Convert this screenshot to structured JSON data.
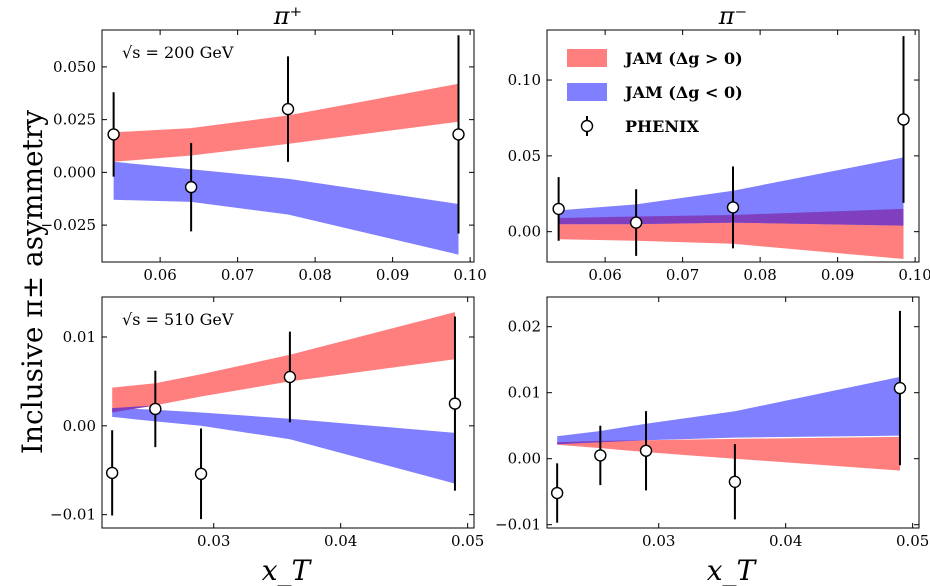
{
  "colors": {
    "positive_band": "#ff7f7f",
    "negative_band": "#7f7fff",
    "overlap_band": "#7f3fbf",
    "data_marker": "#000000"
  },
  "ylabel": "Inclusive π± asymmetry",
  "xlabel": "x_T",
  "chart_data": [
    {
      "type": "line",
      "panel": "top-left",
      "title": "π⁺",
      "annotation": "√s = 200 GeV",
      "xlim": [
        0.0525,
        0.1005
      ],
      "ylim": [
        -0.0425,
        0.0675
      ],
      "xticks": [
        0.06,
        0.07,
        0.08,
        0.09,
        0.1
      ],
      "xtick_labels": [
        "0.06",
        "0.07",
        "0.08",
        "0.09",
        "0.10"
      ],
      "yticks": [
        -0.025,
        0.0,
        0.025,
        0.05
      ],
      "ytick_labels": [
        "−0.025",
        "0.000",
        "0.025",
        "0.050"
      ],
      "bands": [
        {
          "name": "JAM (Δg > 0)",
          "x": [
            0.054,
            0.064,
            0.0765,
            0.0985
          ],
          "lo": [
            0.005,
            0.008,
            0.0135,
            0.024
          ],
          "hi": [
            0.019,
            0.021,
            0.027,
            0.042
          ]
        },
        {
          "name": "JAM (Δg < 0)",
          "x": [
            0.054,
            0.064,
            0.0765,
            0.0985
          ],
          "lo": [
            -0.013,
            -0.014,
            -0.02,
            -0.039
          ],
          "hi": [
            0.005,
            0.0015,
            -0.003,
            -0.015
          ]
        }
      ],
      "points": {
        "name": "PHENIX",
        "x": [
          0.054,
          0.064,
          0.0765,
          0.0985
        ],
        "y": [
          0.018,
          -0.007,
          0.03,
          0.018
        ],
        "err": [
          0.02,
          0.021,
          0.025,
          0.047
        ]
      }
    },
    {
      "type": "line",
      "panel": "top-right",
      "title": "π⁻",
      "annotation": "",
      "xlim": [
        0.0525,
        0.1005
      ],
      "ylim": [
        -0.02,
        0.133
      ],
      "xticks": [
        0.06,
        0.07,
        0.08,
        0.09,
        0.1
      ],
      "xtick_labels": [
        "0.06",
        "0.07",
        "0.08",
        "0.09",
        "0.10"
      ],
      "yticks": [
        0.0,
        0.05,
        0.1
      ],
      "ytick_labels": [
        "0.00",
        "0.05",
        "0.10"
      ],
      "bands": [
        {
          "name": "JAM (Δg > 0)",
          "x": [
            0.054,
            0.064,
            0.0765,
            0.0985
          ],
          "lo": [
            -0.005,
            -0.006,
            -0.008,
            -0.018
          ],
          "hi": [
            0.009,
            0.01,
            0.011,
            0.015
          ]
        },
        {
          "name": "JAM (Δg < 0)",
          "x": [
            0.054,
            0.064,
            0.0765,
            0.0985
          ],
          "lo": [
            0.005,
            0.005,
            0.006,
            0.004
          ],
          "hi": [
            0.014,
            0.018,
            0.027,
            0.049
          ]
        }
      ],
      "points": {
        "name": "PHENIX",
        "x": [
          0.054,
          0.064,
          0.0765,
          0.0985
        ],
        "y": [
          0.015,
          0.006,
          0.016,
          0.074
        ],
        "err": [
          0.021,
          0.022,
          0.027,
          0.055
        ]
      }
    },
    {
      "type": "line",
      "panel": "bottom-left",
      "title": "",
      "annotation": "√s = 510 GeV",
      "xlim": [
        0.0212,
        0.0505
      ],
      "ylim": [
        -0.0115,
        0.0145
      ],
      "xticks": [
        0.03,
        0.04,
        0.05
      ],
      "xtick_labels": [
        "0.03",
        "0.04",
        "0.05"
      ],
      "yticks": [
        -0.01,
        0.0,
        0.01
      ],
      "ytick_labels": [
        "−0.01",
        "0.00",
        "0.01"
      ],
      "bands": [
        {
          "name": "JAM (Δg > 0)",
          "x": [
            0.022,
            0.0254,
            0.029,
            0.036,
            0.049
          ],
          "lo": [
            0.0015,
            0.0023,
            0.0033,
            0.005,
            0.0075
          ],
          "hi": [
            0.0043,
            0.0048,
            0.0058,
            0.008,
            0.0128
          ]
        },
        {
          "name": "JAM (Δg < 0)",
          "x": [
            0.022,
            0.0254,
            0.029,
            0.036,
            0.049
          ],
          "lo": [
            0.001,
            0.0005,
            0.0,
            -0.0015,
            -0.0065
          ],
          "hi": [
            0.002,
            0.0018,
            0.0015,
            0.0008,
            -0.0008
          ]
        }
      ],
      "points": {
        "name": "PHENIX",
        "x": [
          0.022,
          0.0254,
          0.029,
          0.036,
          0.049
        ],
        "y": [
          -0.0053,
          0.0019,
          -0.0054,
          0.0055,
          0.0025
        ],
        "err": [
          0.0048,
          0.0043,
          0.0051,
          0.0051,
          0.0098
        ]
      }
    },
    {
      "type": "line",
      "panel": "bottom-right",
      "title": "",
      "annotation": "",
      "xlim": [
        0.0212,
        0.0505
      ],
      "ylim": [
        -0.0105,
        0.0245
      ],
      "xticks": [
        0.03,
        0.04,
        0.05
      ],
      "xtick_labels": [
        "0.03",
        "0.04",
        "0.05"
      ],
      "yticks": [
        -0.01,
        0.0,
        0.01,
        0.02
      ],
      "ytick_labels": [
        "−0.01",
        "0.00",
        "0.01",
        "0.02"
      ],
      "bands": [
        {
          "name": "JAM (Δg > 0)",
          "x": [
            0.022,
            0.0254,
            0.029,
            0.036,
            0.049
          ],
          "lo": [
            0.0021,
            0.0016,
            0.001,
            0.0,
            -0.0018
          ],
          "hi": [
            0.0025,
            0.0027,
            0.0028,
            0.003,
            0.0033
          ]
        },
        {
          "name": "JAM (Δg < 0)",
          "x": [
            0.022,
            0.0254,
            0.029,
            0.036,
            0.049
          ],
          "lo": [
            0.0022,
            0.0025,
            0.0028,
            0.0032,
            0.0035
          ],
          "hi": [
            0.0034,
            0.0042,
            0.0053,
            0.0072,
            0.0124
          ]
        }
      ],
      "points": {
        "name": "PHENIX",
        "x": [
          0.022,
          0.0254,
          0.029,
          0.036,
          0.049
        ],
        "y": [
          -0.0052,
          0.0005,
          0.0012,
          -0.0035,
          0.0107
        ],
        "err": [
          0.0045,
          0.0045,
          0.006,
          0.0057,
          0.0117
        ]
      }
    }
  ],
  "legend": {
    "placement": "top-right panel, upper-left",
    "entries": [
      {
        "label": "JAM (Δg > 0)",
        "kind": "patch",
        "color": "#ff7f7f"
      },
      {
        "label": "JAM (Δg < 0)",
        "kind": "patch",
        "color": "#7f7fff"
      },
      {
        "label": "PHENIX",
        "kind": "marker",
        "color": "#000000"
      }
    ]
  }
}
